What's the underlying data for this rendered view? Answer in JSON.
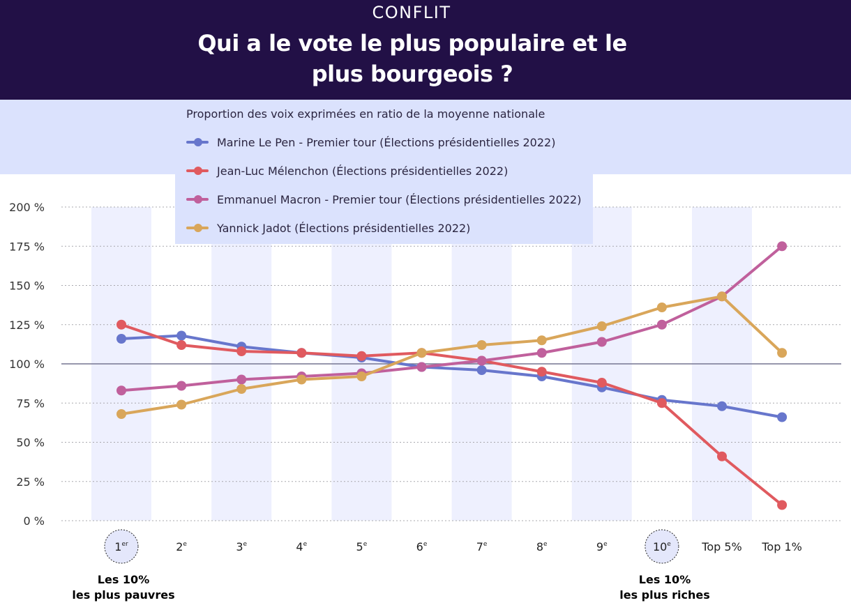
{
  "header": {
    "kicker": "CONFLIT",
    "title": "Qui a le vote le plus populaire et le plus bourgeois ?"
  },
  "colors": {
    "header_bg": "#221046",
    "band_bg": "#dbe2fd",
    "column_shade": "#eef0fe"
  },
  "chart_data": {
    "type": "line",
    "subtitle": "Proportion des voix exprimées en ratio de la moyenne nationale",
    "categories": [
      "1er",
      "2e",
      "3e",
      "4e",
      "5e",
      "6e",
      "7e",
      "8e",
      "9e",
      "10e",
      "Top 5%",
      "Top 1%"
    ],
    "category_labels": [
      {
        "base": "1",
        "sup": "er",
        "circled": true
      },
      {
        "base": "2",
        "sup": "e"
      },
      {
        "base": "3",
        "sup": "e"
      },
      {
        "base": "4",
        "sup": "e"
      },
      {
        "base": "5",
        "sup": "e"
      },
      {
        "base": "6",
        "sup": "e"
      },
      {
        "base": "7",
        "sup": "e"
      },
      {
        "base": "8",
        "sup": "e"
      },
      {
        "base": "9",
        "sup": "e"
      },
      {
        "base": "10",
        "sup": "e",
        "circled": true
      },
      {
        "base": "Top 5%",
        "sup": ""
      },
      {
        "base": "Top 1%",
        "sup": ""
      }
    ],
    "group_labels": {
      "poor": [
        "Les 10%",
        "les plus pauvres"
      ],
      "rich": [
        "Les 10%",
        "les plus riches"
      ]
    },
    "y_ticks": [
      "0 %",
      "25 %",
      "50 %",
      "75 %",
      "100 %",
      "125 %",
      "150 %",
      "175 %",
      "200 %"
    ],
    "ylim": [
      0,
      200
    ],
    "reference_line": 100,
    "series": [
      {
        "name": "Marine Le Pen - Premier tour (Élections présidentielles 2022)",
        "color": "#6776cc",
        "values": [
          116,
          118,
          111,
          107,
          104,
          98,
          96,
          92,
          85,
          77,
          73,
          66
        ]
      },
      {
        "name": "Jean-Luc Mélenchon (Élections présidentielles 2022)",
        "color": "#e05a5f",
        "values": [
          125,
          112,
          108,
          107,
          105,
          107,
          102,
          95,
          88,
          75,
          41,
          10
        ]
      },
      {
        "name": "Emmanuel Macron - Premier tour (Élections présidentielles 2022)",
        "color": "#c0609c",
        "values": [
          83,
          86,
          90,
          92,
          94,
          98,
          102,
          107,
          114,
          125,
          143,
          175
        ]
      },
      {
        "name": "Yannick Jadot (Élections présidentielles 2022)",
        "color": "#d9a65a",
        "values": [
          68,
          74,
          84,
          90,
          92,
          107,
          112,
          115,
          124,
          136,
          143,
          107
        ]
      }
    ]
  }
}
